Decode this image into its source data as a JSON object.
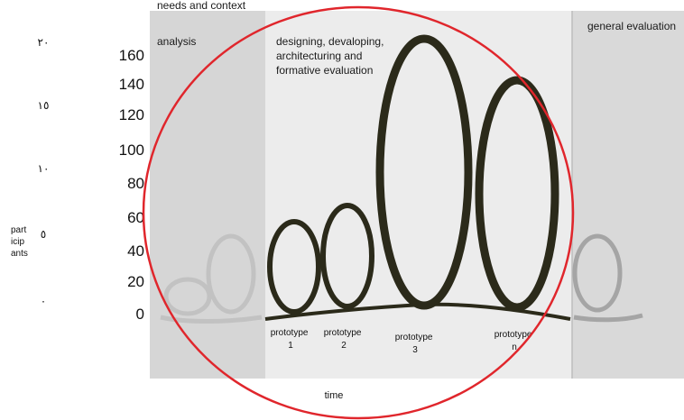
{
  "phases": {
    "needs": {
      "line1": "needs and context",
      "line2": "analysis"
    },
    "design": {
      "line1": "designing, devaloping,",
      "line2": "architecturing and",
      "line3": "formative evaluation"
    },
    "general": {
      "line1": "general evaluation"
    }
  },
  "y_ticks": [
    "160",
    "140",
    "120",
    "100",
    "80",
    "60",
    "40",
    "20",
    "0"
  ],
  "arabic_ticks": [
    "٢٠",
    "١٥",
    "١٠",
    "٥",
    "٠"
  ],
  "ylabel": {
    "line1": "part",
    "line2": "icip",
    "line3": "ants"
  },
  "prototypes": [
    {
      "line1": "prototype",
      "line2": "1"
    },
    {
      "line1": "prototype",
      "line2": "2"
    },
    {
      "line1": "prototype",
      "line2": "3"
    },
    {
      "line1": "prototype",
      "line2": "n"
    }
  ],
  "xlabel": "time",
  "colors": {
    "loop_dark": "#2b2a1a",
    "loop_faded": "#b8b8b8",
    "band_needs": "#d6d6d6",
    "band_design": "#ececec",
    "band_general": "#d9d9d9",
    "circle": "#e0262c"
  }
}
